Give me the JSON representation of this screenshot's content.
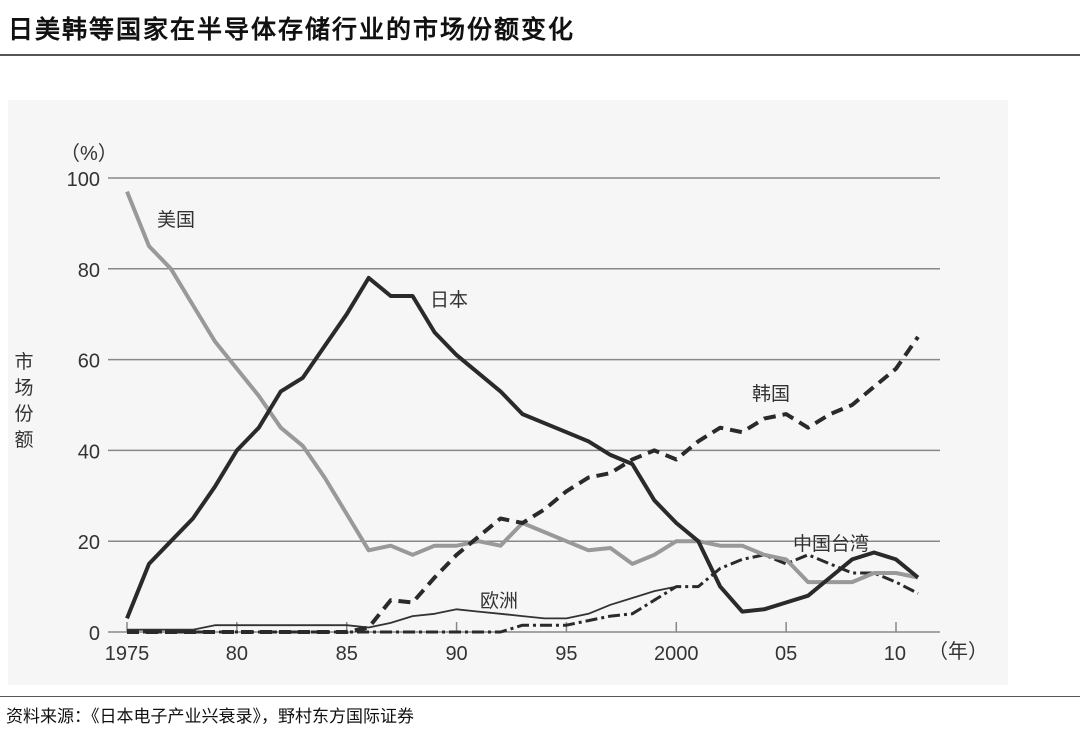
{
  "title": "日美韩等国家在半导体存储行业的市场份额变化",
  "source": "资料来源：《日本电子产业兴衰录》，野村东方国际证券",
  "chart_data": {
    "type": "line",
    "title": "",
    "ylabel": "市场份额",
    "yunit": "（%）",
    "xunit": "（年）",
    "ylim": [
      0,
      100
    ],
    "xlim": [
      1975,
      2011
    ],
    "yticks": [
      0,
      20,
      40,
      60,
      80,
      100
    ],
    "xticks": [
      {
        "value": 1975,
        "label": "1975"
      },
      {
        "value": 1980,
        "label": "80"
      },
      {
        "value": 1985,
        "label": "85"
      },
      {
        "value": 1990,
        "label": "90"
      },
      {
        "value": 1995,
        "label": "95"
      },
      {
        "value": 2000,
        "label": "2000"
      },
      {
        "value": 2005,
        "label": "05"
      },
      {
        "value": 2010,
        "label": "10"
      }
    ],
    "grid": "horizontal",
    "x": [
      1975,
      1976,
      1977,
      1978,
      1979,
      1980,
      1981,
      1982,
      1983,
      1984,
      1985,
      1986,
      1987,
      1988,
      1989,
      1990,
      1991,
      1992,
      1993,
      1994,
      1995,
      1996,
      1997,
      1998,
      1999,
      2000,
      2001,
      2002,
      2003,
      2004,
      2005,
      2006,
      2007,
      2008,
      2009,
      2010,
      2011
    ],
    "series": [
      {
        "name": "美国",
        "color": "#999999",
        "style": "solid-thick",
        "values": [
          97,
          85,
          80,
          72,
          64,
          58,
          52,
          45,
          41,
          34,
          26,
          18,
          19,
          17,
          19,
          19,
          20,
          19,
          24,
          22,
          20,
          18,
          18.5,
          15,
          17,
          20,
          20,
          19,
          19,
          17,
          16,
          11,
          11,
          11,
          13,
          13,
          12
        ]
      },
      {
        "name": "日本",
        "color": "#2a2a2a",
        "style": "solid-thick",
        "values": [
          3,
          15,
          20,
          25,
          32,
          40,
          45,
          53,
          56,
          63,
          70,
          78,
          74,
          74,
          66,
          61,
          57,
          53,
          48,
          46,
          44,
          42,
          39,
          37,
          29,
          24,
          20,
          10,
          4.5,
          5,
          6.5,
          8,
          12,
          16,
          17.5,
          16,
          12
        ]
      },
      {
        "name": "韩国",
        "color": "#2a2a2a",
        "style": "dashed-thick",
        "values": [
          0,
          0,
          0,
          0,
          0,
          0,
          0,
          0,
          0,
          0,
          0,
          1,
          7,
          6.5,
          12,
          17,
          21,
          25,
          24,
          27,
          31,
          34,
          35,
          38,
          40,
          38,
          42,
          45,
          44,
          47,
          48,
          45,
          48,
          50,
          54,
          58,
          65
        ]
      },
      {
        "name": "中国台湾",
        "color": "#2a2a2a",
        "style": "dashdot",
        "values": [
          0,
          0,
          0,
          0,
          0,
          0,
          0,
          0,
          0,
          0,
          0,
          0,
          0,
          0,
          0,
          0,
          0,
          0,
          1.5,
          1.5,
          1.5,
          2.5,
          3.5,
          4,
          7,
          10,
          10,
          14,
          16,
          17,
          15,
          17,
          15,
          13,
          13,
          11,
          8.5
        ]
      },
      {
        "name": "欧洲",
        "color": "#333333",
        "style": "solid-thin",
        "values": [
          0.5,
          0.5,
          0.5,
          0.5,
          1.5,
          1.5,
          1.5,
          1.5,
          1.5,
          1.5,
          1.5,
          1,
          2,
          3.5,
          4,
          5,
          4.5,
          4,
          3.5,
          3,
          3,
          4,
          6,
          7.5,
          9,
          10,
          null,
          null,
          null,
          null,
          null,
          null,
          null,
          null,
          null,
          null,
          null
        ]
      }
    ]
  }
}
